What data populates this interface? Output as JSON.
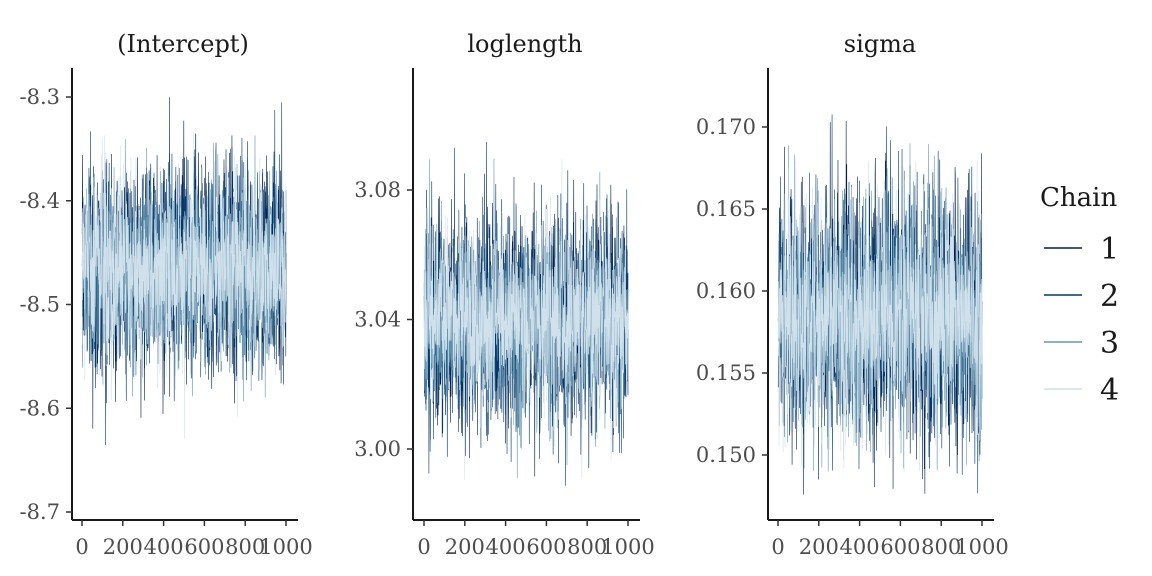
{
  "colors": {
    "chain1": "#011f4b",
    "chain2": "#03396c",
    "chain3": "#6497b1",
    "chain4": "#d1e1ec"
  },
  "legend": {
    "title": "Chain",
    "entries": [
      "1",
      "2",
      "3",
      "4"
    ]
  },
  "chart_data": [
    {
      "type": "line",
      "title": "(Intercept)",
      "xlabel": "",
      "ylabel": "",
      "xlim": [
        0,
        1000
      ],
      "ylim": [
        -8.7,
        -8.3
      ],
      "x_ticks": [
        0,
        200,
        400,
        600,
        800,
        1000
      ],
      "x_tick_labels": [
        "0",
        "200",
        "400",
        "600",
        "800",
        "1000"
      ],
      "y_ticks": [
        -8.7,
        -8.6,
        -8.5,
        -8.4,
        -8.3
      ],
      "y_tick_labels": [
        "-8.7",
        "-8.6",
        "-8.5",
        "-8.4",
        "-8.3"
      ],
      "x_range": [
        0,
        1000
      ],
      "series": [
        {
          "name": "1",
          "mean": -8.465,
          "sd": 0.05,
          "min": -8.66,
          "max": -8.3
        },
        {
          "name": "2",
          "mean": -8.465,
          "sd": 0.05,
          "min": -8.69,
          "max": -8.29
        },
        {
          "name": "3",
          "mean": -8.465,
          "sd": 0.045,
          "min": -8.63,
          "max": -8.32
        },
        {
          "name": "4",
          "mean": -8.465,
          "sd": 0.045,
          "min": -8.64,
          "max": -8.33
        }
      ],
      "grid": false
    },
    {
      "type": "line",
      "title": "loglength",
      "xlabel": "",
      "ylabel": "",
      "xlim": [
        0,
        1000
      ],
      "ylim": [
        2.98,
        3.1
      ],
      "x_ticks": [
        0,
        200,
        400,
        600,
        800,
        1000
      ],
      "x_tick_labels": [
        "0",
        "200",
        "400",
        "600",
        "800",
        "1000"
      ],
      "y_ticks": [
        3.0,
        3.04,
        3.08
      ],
      "y_tick_labels": [
        "3.00",
        "3.04",
        "3.08"
      ],
      "x_range": [
        0,
        1000
      ],
      "series": [
        {
          "name": "1",
          "mean": 3.04,
          "sd": 0.016,
          "min": 2.985,
          "max": 3.105
        },
        {
          "name": "2",
          "mean": 3.04,
          "sd": 0.016,
          "min": 2.983,
          "max": 3.095
        },
        {
          "name": "3",
          "mean": 3.04,
          "sd": 0.014,
          "min": 2.99,
          "max": 3.09
        },
        {
          "name": "4",
          "mean": 3.04,
          "sd": 0.014,
          "min": 2.99,
          "max": 3.09
        }
      ],
      "grid": false
    },
    {
      "type": "line",
      "title": "sigma",
      "xlabel": "",
      "ylabel": "",
      "xlim": [
        0,
        1000
      ],
      "ylim": [
        0.146,
        0.173
      ],
      "x_ticks": [
        0,
        200,
        400,
        600,
        800,
        1000
      ],
      "x_tick_labels": [
        "0",
        "200",
        "400",
        "600",
        "800",
        "1000"
      ],
      "y_ticks": [
        0.15,
        0.155,
        0.16,
        0.165,
        0.17
      ],
      "y_tick_labels": [
        "0.150",
        "0.155",
        "0.160",
        "0.165",
        "0.170"
      ],
      "x_range": [
        0,
        1000
      ],
      "series": [
        {
          "name": "1",
          "mean": 0.1585,
          "sd": 0.0037,
          "min": 0.147,
          "max": 0.1725
        },
        {
          "name": "2",
          "mean": 0.1585,
          "sd": 0.0037,
          "min": 0.1475,
          "max": 0.171
        },
        {
          "name": "3",
          "mean": 0.1585,
          "sd": 0.0034,
          "min": 0.149,
          "max": 0.169
        },
        {
          "name": "4",
          "mean": 0.1585,
          "sd": 0.0034,
          "min": 0.149,
          "max": 0.168
        }
      ],
      "grid": false
    }
  ]
}
